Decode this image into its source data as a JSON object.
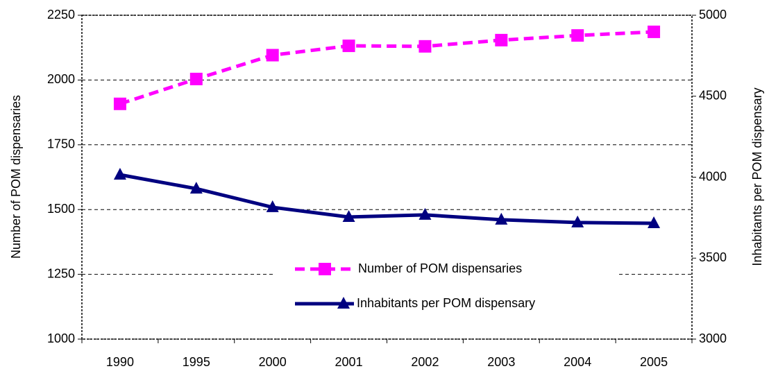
{
  "chart_data": {
    "type": "line",
    "categories": [
      "1990",
      "1995",
      "2000",
      "2001",
      "2002",
      "2003",
      "2004",
      "2005"
    ],
    "ylabel": "Number of POM dispensaries",
    "y2label": "Inhabitants per POM dispensary",
    "ylim": [
      1000,
      2250
    ],
    "yticks": [
      1000,
      1250,
      1500,
      1750,
      2000,
      2250
    ],
    "y2lim": [
      3000,
      5000
    ],
    "y2ticks": [
      3000,
      3500,
      4000,
      4500,
      5000
    ],
    "grid": true,
    "legend": "bottom",
    "series": [
      {
        "name": "Number of POM dispensaries",
        "color": "#ff00ff",
        "values": [
          1908,
          2004,
          2096,
          2132,
          2130,
          2154,
          2172,
          2186
        ]
      },
      {
        "name": "Inhabitants per POM dispensary",
        "color": "#000080",
        "axis": "y2",
        "values": [
          4015,
          3929,
          3814,
          3754,
          3767,
          3737,
          3720,
          3715
        ]
      }
    ]
  }
}
